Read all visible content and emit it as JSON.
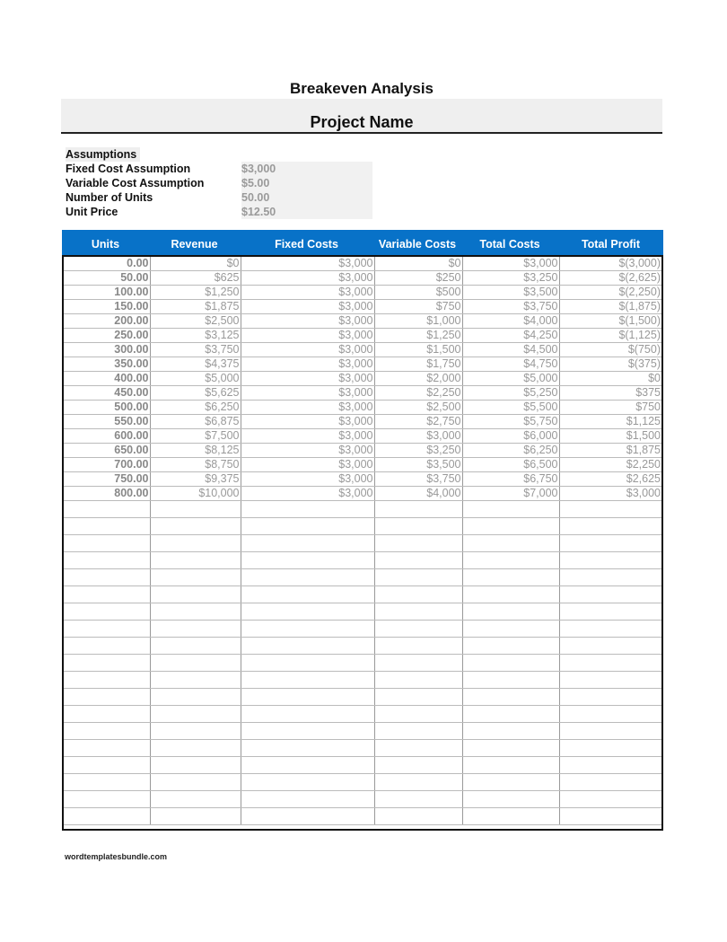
{
  "title": "Breakeven Analysis",
  "project_name": "Project Name",
  "assumptions": {
    "heading": "Assumptions",
    "items": [
      {
        "label": "Fixed Cost Assumption",
        "value": "$3,000"
      },
      {
        "label": "Variable Cost Assumption",
        "value": "$5.00"
      },
      {
        "label": "Number of Units",
        "value": "50.00"
      },
      {
        "label": "Unit Price",
        "value": "$12.50"
      }
    ]
  },
  "table": {
    "header_color": "#0872c8",
    "columns": [
      "Units",
      "Revenue",
      "Fixed Costs",
      "Variable Costs",
      "Total Costs",
      "Total Profit"
    ],
    "rows": [
      [
        "0.00",
        "$0",
        "$3,000",
        "$0",
        "$3,000",
        "$(3,000)"
      ],
      [
        "50.00",
        "$625",
        "$3,000",
        "$250",
        "$3,250",
        "$(2,625)"
      ],
      [
        "100.00",
        "$1,250",
        "$3,000",
        "$500",
        "$3,500",
        "$(2,250)"
      ],
      [
        "150.00",
        "$1,875",
        "$3,000",
        "$750",
        "$3,750",
        "$(1,875)"
      ],
      [
        "200.00",
        "$2,500",
        "$3,000",
        "$1,000",
        "$4,000",
        "$(1,500)"
      ],
      [
        "250.00",
        "$3,125",
        "$3,000",
        "$1,250",
        "$4,250",
        "$(1,125)"
      ],
      [
        "300.00",
        "$3,750",
        "$3,000",
        "$1,500",
        "$4,500",
        "$(750)"
      ],
      [
        "350.00",
        "$4,375",
        "$3,000",
        "$1,750",
        "$4,750",
        "$(375)"
      ],
      [
        "400.00",
        "$5,000",
        "$3,000",
        "$2,000",
        "$5,000",
        "$0"
      ],
      [
        "450.00",
        "$5,625",
        "$3,000",
        "$2,250",
        "$5,250",
        "$375"
      ],
      [
        "500.00",
        "$6,250",
        "$3,000",
        "$2,500",
        "$5,500",
        "$750"
      ],
      [
        "550.00",
        "$6,875",
        "$3,000",
        "$2,750",
        "$5,750",
        "$1,125"
      ],
      [
        "600.00",
        "$7,500",
        "$3,000",
        "$3,000",
        "$6,000",
        "$1,500"
      ],
      [
        "650.00",
        "$8,125",
        "$3,000",
        "$3,250",
        "$6,250",
        "$1,875"
      ],
      [
        "700.00",
        "$8,750",
        "$3,000",
        "$3,500",
        "$6,500",
        "$2,250"
      ],
      [
        "750.00",
        "$9,375",
        "$3,000",
        "$3,750",
        "$6,750",
        "$2,625"
      ],
      [
        "800.00",
        "$10,000",
        "$3,000",
        "$4,000",
        "$7,000",
        "$3,000"
      ]
    ]
  },
  "footer": "wordtemplatesbundle.com"
}
